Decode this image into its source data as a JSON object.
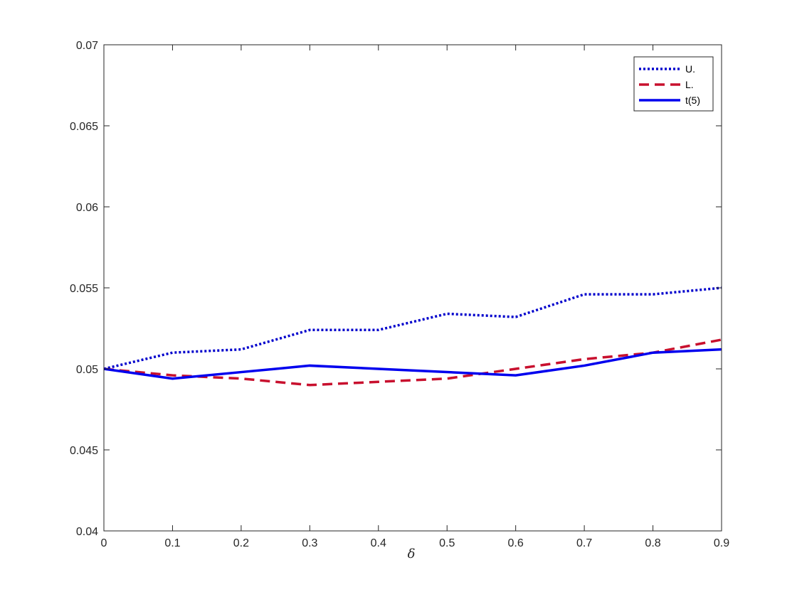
{
  "chart_data": {
    "type": "line",
    "title": "",
    "xlabel": "δ",
    "ylabel": "",
    "xlim": [
      0,
      0.9
    ],
    "ylim": [
      0.04,
      0.07
    ],
    "x_ticks": [
      0,
      0.1,
      0.2,
      0.3,
      0.4,
      0.5,
      0.6,
      0.7,
      0.8,
      0.9
    ],
    "x_tick_labels": [
      "0",
      "0.1",
      "0.2",
      "0.3",
      "0.4",
      "0.5",
      "0.6",
      "0.7",
      "0.8",
      "0.9"
    ],
    "y_ticks": [
      0.04,
      0.045,
      0.05,
      0.055,
      0.06,
      0.065,
      0.07
    ],
    "y_tick_labels": [
      "0.04",
      "0.045",
      "0.05",
      "0.055",
      "0.06",
      "0.065",
      "0.07"
    ],
    "grid": false,
    "legend_position": "top-right",
    "x": [
      0,
      0.1,
      0.2,
      0.3,
      0.4,
      0.5,
      0.6,
      0.7,
      0.8,
      0.9
    ],
    "series": [
      {
        "name": "U.",
        "style": "dotted",
        "color": "#0000cc",
        "values": [
          0.05,
          0.051,
          0.0512,
          0.0524,
          0.0524,
          0.0534,
          0.0532,
          0.0546,
          0.0546,
          0.055
        ]
      },
      {
        "name": "L.",
        "style": "dashed",
        "color": "#c8102e",
        "values": [
          0.05,
          0.0496,
          0.0494,
          0.049,
          0.0492,
          0.0494,
          0.05,
          0.0506,
          0.051,
          0.0518
        ]
      },
      {
        "name": "t(5)",
        "style": "solid",
        "color": "#0000ee",
        "values": [
          0.05,
          0.0494,
          0.0498,
          0.0502,
          0.05,
          0.0498,
          0.0496,
          0.0502,
          0.051,
          0.0512
        ]
      }
    ]
  }
}
